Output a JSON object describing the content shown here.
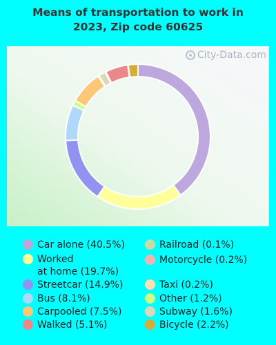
{
  "title": "Means of transportation to work in\n2023, Zip code 60625",
  "watermark": "City-Data.com",
  "chart_data": {
    "type": "pie",
    "donut": true,
    "title": "Means of transportation to work in 2023, Zip code 60625",
    "slices": [
      {
        "label": "Car alone",
        "value": 40.5,
        "color": "#bca8dc"
      },
      {
        "label": "Worked at home",
        "value": 19.7,
        "color": "#ffff99"
      },
      {
        "label": "Streetcar",
        "value": 14.9,
        "color": "#9292f0"
      },
      {
        "label": "Bus",
        "value": 8.1,
        "color": "#b0d8f8"
      },
      {
        "label": "Other",
        "value": 1.2,
        "color": "#ccff88"
      },
      {
        "label": "Carpooled",
        "value": 7.5,
        "color": "#fcc878"
      },
      {
        "label": "Taxi",
        "value": 0.2,
        "color": "#fde0b0"
      },
      {
        "label": "Subway",
        "value": 1.6,
        "color": "#ded6b8"
      },
      {
        "label": "Motorcycle",
        "value": 0.2,
        "color": "#f0b4b4"
      },
      {
        "label": "Walked",
        "value": 5.1,
        "color": "#ec8888"
      },
      {
        "label": "Railroad",
        "value": 0.1,
        "color": "#c8dca8"
      },
      {
        "label": "Bicycle",
        "value": 2.2,
        "color": "#d8ac3a"
      }
    ]
  },
  "legend": {
    "left": [
      {
        "text": "Car alone (40.5%)",
        "color": "#bca8dc"
      },
      {
        "text": "Worked\nat home (19.7%)",
        "color": "#ffff99"
      },
      {
        "text": "Streetcar (14.9%)",
        "color": "#9292f0"
      },
      {
        "text": "Bus (8.1%)",
        "color": "#b0d8f8"
      },
      {
        "text": "Carpooled (7.5%)",
        "color": "#fcc878"
      },
      {
        "text": "Walked (5.1%)",
        "color": "#ec8888"
      }
    ],
    "right": [
      {
        "text": "Railroad (0.1%)",
        "color": "#c8dca8"
      },
      {
        "text": "Motorcycle (0.2%)",
        "color": "#f0b4b4"
      },
      {
        "text": "Taxi (0.2%)",
        "color": "#fde0b0"
      },
      {
        "text": "Other (1.2%)",
        "color": "#ccff88"
      },
      {
        "text": "Subway (1.6%)",
        "color": "#ded6b8"
      },
      {
        "text": "Bicycle (2.2%)",
        "color": "#d8ac3a"
      }
    ]
  }
}
